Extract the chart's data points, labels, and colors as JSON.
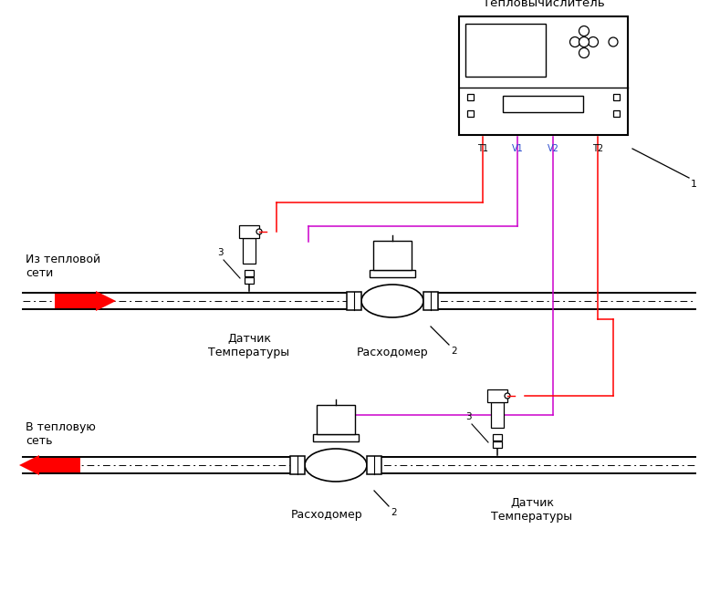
{
  "bg_color": "#ffffff",
  "pipe_color": "#000000",
  "red_wire": "#ff0000",
  "magenta_wire": "#cc00cc",
  "labels": {
    "teplovych": "Тепловычислитель",
    "iz_teplovoy": "Из тепловой\nсети",
    "v_teplovuyu": "В тепловую\nсеть",
    "raskhod1": "Расходомер",
    "raskhod2": "Расходомер",
    "datchik1": "Датчик\nТемпературы",
    "datchik2": "Датчик\nТемпературы",
    "num1": "1",
    "num2_1": "2",
    "num2_2": "2",
    "num3_1": "3",
    "num3_2": "3",
    "T1": "T1",
    "V1": "V1",
    "V2": "V2",
    "T2": "T2"
  }
}
